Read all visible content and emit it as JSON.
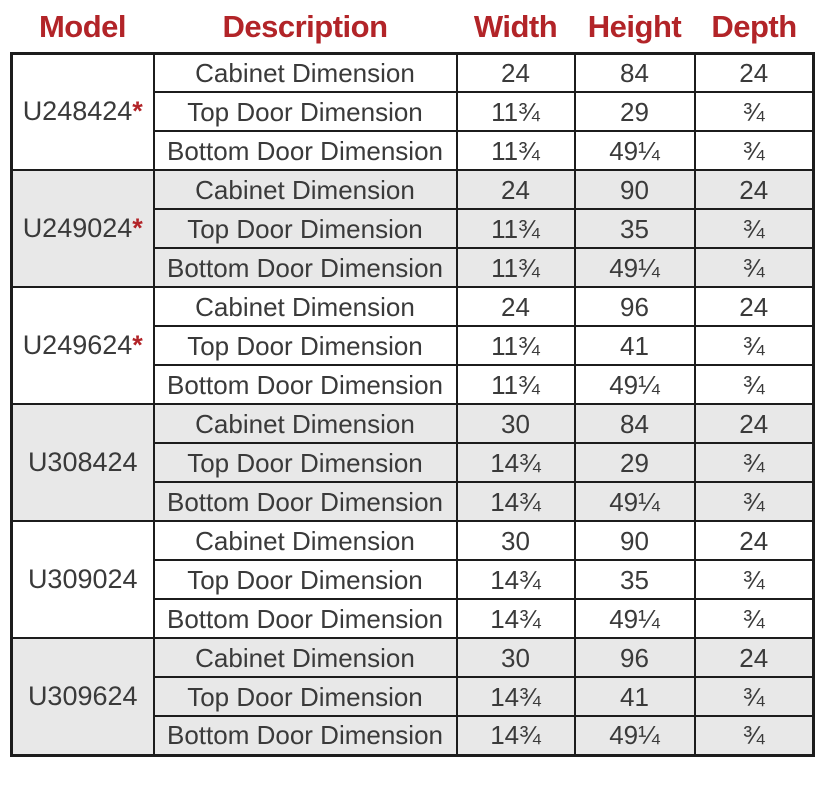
{
  "colors": {
    "header_text": "#b22428",
    "asterisk": "#b22428",
    "body_text": "#3a3a3a",
    "shaded_row_bg": "#e8e8e8",
    "border": "#1c1c1c",
    "page_bg": "#ffffff"
  },
  "table": {
    "columns": [
      "Model",
      "Description",
      "Width",
      "Height",
      "Depth"
    ],
    "groups": [
      {
        "model": "U248424",
        "asterisk": "*",
        "shaded": false,
        "rows": [
          {
            "description": "Cabinet Dimension",
            "width": "24",
            "height": "84",
            "depth": "24"
          },
          {
            "description": "Top Door Dimension",
            "width": "11¾",
            "height": "29",
            "depth": "¾"
          },
          {
            "description": "Bottom Door Dimension",
            "width": "11¾",
            "height": "49¼",
            "depth": "¾"
          }
        ]
      },
      {
        "model": "U249024",
        "asterisk": "*",
        "shaded": true,
        "rows": [
          {
            "description": "Cabinet Dimension",
            "width": "24",
            "height": "90",
            "depth": "24"
          },
          {
            "description": "Top Door Dimension",
            "width": "11¾",
            "height": "35",
            "depth": "¾"
          },
          {
            "description": "Bottom Door Dimension",
            "width": "11¾",
            "height": "49¼",
            "depth": "¾"
          }
        ]
      },
      {
        "model": "U249624",
        "asterisk": "*",
        "shaded": false,
        "rows": [
          {
            "description": "Cabinet Dimension",
            "width": "24",
            "height": "96",
            "depth": "24"
          },
          {
            "description": "Top Door Dimension",
            "width": "11¾",
            "height": "41",
            "depth": "¾"
          },
          {
            "description": "Bottom Door Dimension",
            "width": "11¾",
            "height": "49¼",
            "depth": "¾"
          }
        ]
      },
      {
        "model": "U308424",
        "asterisk": "",
        "shaded": true,
        "rows": [
          {
            "description": "Cabinet Dimension",
            "width": "30",
            "height": "84",
            "depth": "24"
          },
          {
            "description": "Top Door Dimension",
            "width": "14¾",
            "height": "29",
            "depth": "¾"
          },
          {
            "description": "Bottom Door Dimension",
            "width": "14¾",
            "height": "49¼",
            "depth": "¾"
          }
        ]
      },
      {
        "model": "U309024",
        "asterisk": "",
        "shaded": false,
        "rows": [
          {
            "description": "Cabinet Dimension",
            "width": "30",
            "height": "90",
            "depth": "24"
          },
          {
            "description": "Top Door Dimension",
            "width": "14¾",
            "height": "35",
            "depth": "¾"
          },
          {
            "description": "Bottom Door Dimension",
            "width": "14¾",
            "height": "49¼",
            "depth": "¾"
          }
        ]
      },
      {
        "model": "U309624",
        "asterisk": "",
        "shaded": true,
        "rows": [
          {
            "description": "Cabinet Dimension",
            "width": "30",
            "height": "96",
            "depth": "24"
          },
          {
            "description": "Top Door Dimension",
            "width": "14¾",
            "height": "41",
            "depth": "¾"
          },
          {
            "description": "Bottom Door Dimension",
            "width": "14¾",
            "height": "49¼",
            "depth": "¾"
          }
        ]
      }
    ]
  }
}
